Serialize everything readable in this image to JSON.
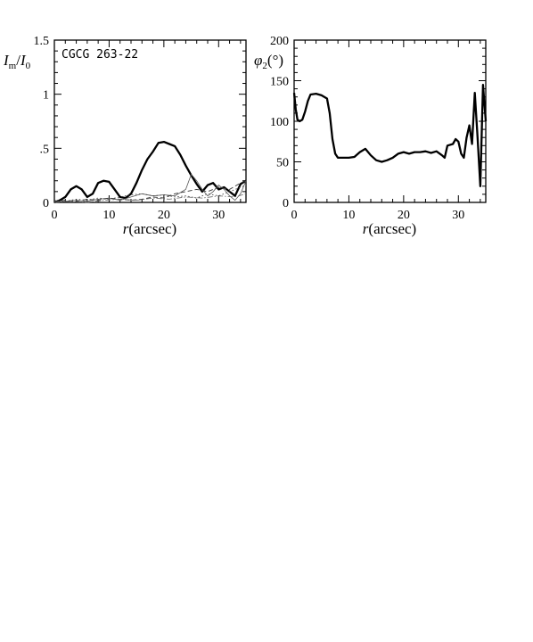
{
  "chart_data": [
    {
      "type": "line",
      "xlabel_symbol": "r",
      "xlabel_unit": "(arcsec)",
      "ylabel_main": "I",
      "ylabel_sub": "m",
      "ylabel_sep": "/",
      "ylabel_den": "I",
      "ylabel_den_sub": "0",
      "annotation": "CGCG 263-22",
      "xlim": [
        0,
        35
      ],
      "ylim": [
        0,
        1.5
      ],
      "xticks": [
        0,
        10,
        20,
        30
      ],
      "xtick_labels": [
        "0",
        "10",
        "20",
        "30"
      ],
      "yticks": [
        0,
        0.5,
        1,
        1.5
      ],
      "ytick_labels": [
        "0",
        ".5",
        "1",
        "1.5"
      ],
      "x_minor_step": 2,
      "y_minor_step": 0.1,
      "series": [
        {
          "style": "thick",
          "x": [
            0,
            1,
            2,
            3,
            4,
            5,
            6,
            7,
            8,
            9,
            10,
            11,
            12,
            13,
            14,
            15,
            16,
            17,
            18,
            19,
            20,
            21,
            22,
            23,
            24,
            25,
            26,
            27,
            28,
            29,
            30,
            31,
            32,
            33,
            34,
            35
          ],
          "y": [
            0.0,
            0.02,
            0.05,
            0.12,
            0.15,
            0.12,
            0.05,
            0.08,
            0.18,
            0.2,
            0.19,
            0.12,
            0.05,
            0.04,
            0.08,
            0.18,
            0.3,
            0.4,
            0.47,
            0.55,
            0.56,
            0.54,
            0.52,
            0.44,
            0.34,
            0.25,
            0.17,
            0.1,
            0.16,
            0.18,
            0.12,
            0.14,
            0.1,
            0.06,
            0.17,
            0.2
          ]
        },
        {
          "style": "thin",
          "x": [
            0,
            2,
            4,
            6,
            8,
            10,
            12,
            14,
            16,
            18,
            20,
            22,
            24,
            25,
            26,
            27,
            28,
            29,
            30,
            31,
            32,
            33,
            34,
            35
          ],
          "y": [
            0.0,
            0.01,
            0.02,
            0.01,
            0.03,
            0.04,
            0.02,
            0.05,
            0.08,
            0.06,
            0.07,
            0.06,
            0.12,
            0.26,
            0.2,
            0.12,
            0.06,
            0.1,
            0.16,
            0.12,
            0.06,
            0.02,
            0.08,
            0.2
          ]
        },
        {
          "style": "dashed",
          "x": [
            0,
            2,
            4,
            6,
            8,
            10,
            12,
            14,
            16,
            18,
            20,
            22,
            24,
            26,
            28,
            30,
            32,
            34,
            35
          ],
          "y": [
            0.01,
            0.02,
            0.01,
            0.03,
            0.02,
            0.04,
            0.03,
            0.02,
            0.03,
            0.05,
            0.04,
            0.08,
            0.1,
            0.12,
            0.1,
            0.14,
            0.12,
            0.18,
            0.2
          ]
        },
        {
          "style": "dotted",
          "x": [
            0,
            2,
            4,
            6,
            8,
            10,
            12,
            14,
            16,
            18,
            20,
            22,
            24,
            26,
            28,
            30,
            32,
            34,
            35
          ],
          "y": [
            0.02,
            0.01,
            0.03,
            0.02,
            0.04,
            0.03,
            0.05,
            0.07,
            0.08,
            0.06,
            0.07,
            0.05,
            0.06,
            0.04,
            0.08,
            0.06,
            0.1,
            0.14,
            0.16
          ]
        },
        {
          "style": "dashdot",
          "x": [
            0,
            3,
            6,
            9,
            12,
            15,
            18,
            21,
            24,
            27,
            30,
            33,
            35
          ],
          "y": [
            0.0,
            0.01,
            0.0,
            0.02,
            0.03,
            0.02,
            0.04,
            0.03,
            0.05,
            0.04,
            0.06,
            0.05,
            0.08
          ]
        }
      ]
    },
    {
      "type": "line",
      "xlabel_symbol": "r",
      "xlabel_unit": "(arcsec)",
      "ylabel_main": "φ",
      "ylabel_sub": "2",
      "ylabel_unit": "(°)",
      "xlim": [
        0,
        35
      ],
      "ylim": [
        0,
        200
      ],
      "xticks": [
        0,
        10,
        20,
        30
      ],
      "xtick_labels": [
        "0",
        "10",
        "20",
        "30"
      ],
      "yticks": [
        0,
        50,
        100,
        150,
        200
      ],
      "ytick_labels": [
        "0",
        "50",
        "100",
        "150",
        "200"
      ],
      "x_minor_step": 2,
      "y_minor_step": 10,
      "series": [
        {
          "style": "thick",
          "x": [
            0,
            0.3,
            0.6,
            1,
            1.5,
            2,
            2.5,
            3,
            4,
            5,
            6,
            6.5,
            7,
            7.5,
            8,
            9,
            10,
            11,
            12,
            13,
            14,
            15,
            16,
            17,
            18,
            19,
            20,
            21,
            22,
            23,
            24,
            25,
            26,
            27,
            27.5,
            28,
            29,
            29.5,
            30,
            30.5,
            31,
            31.5,
            32,
            32.5,
            33,
            33.5,
            34,
            34.5,
            35
          ],
          "y": [
            135,
            115,
            102,
            100,
            102,
            112,
            125,
            133,
            134,
            132,
            128,
            110,
            78,
            60,
            55,
            55,
            55,
            56,
            62,
            66,
            58,
            52,
            50,
            52,
            55,
            60,
            62,
            60,
            62,
            62,
            63,
            61,
            63,
            58,
            55,
            70,
            72,
            78,
            75,
            60,
            55,
            80,
            95,
            72,
            135,
            80,
            20,
            145,
            100
          ]
        }
      ]
    }
  ]
}
